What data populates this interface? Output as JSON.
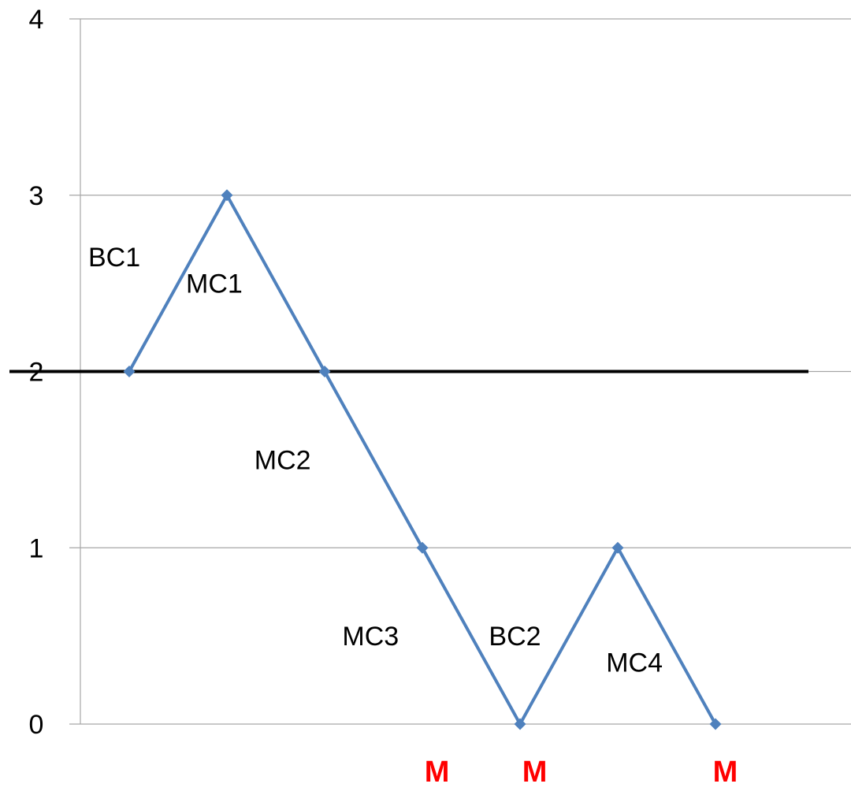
{
  "chart_data": {
    "type": "line",
    "title": "",
    "xlabel": "",
    "ylabel": "",
    "ylim": [
      0,
      4
    ],
    "y_ticks": [
      "0",
      "1",
      "2",
      "3",
      "4"
    ],
    "grid": true,
    "reference_line": {
      "y": 2
    },
    "series": [
      {
        "values": [
          2,
          3,
          2,
          1,
          0,
          1,
          0
        ]
      }
    ],
    "annotations": [
      {
        "text": "BC1",
        "x": 0.0,
        "y": 2.65
      },
      {
        "text": "MC1",
        "x": 1.0,
        "y": 2.5
      },
      {
        "text": "MC2",
        "x": 1.7,
        "y": 1.5
      },
      {
        "text": "MC3",
        "x": 2.6,
        "y": 0.5
      },
      {
        "text": "BC2",
        "x": 4.1,
        "y": 0.5
      },
      {
        "text": "MC4",
        "x": 5.3,
        "y": 0.35
      }
    ],
    "markers": [
      {
        "text": "M",
        "x": 3.15
      },
      {
        "text": "M",
        "x": 4.15
      },
      {
        "text": "M",
        "x": 6.1
      }
    ],
    "colors": {
      "series": "#4f81bd",
      "grid": "#a6a6a6",
      "reference": "#000000",
      "markers": "#ff0000"
    }
  }
}
